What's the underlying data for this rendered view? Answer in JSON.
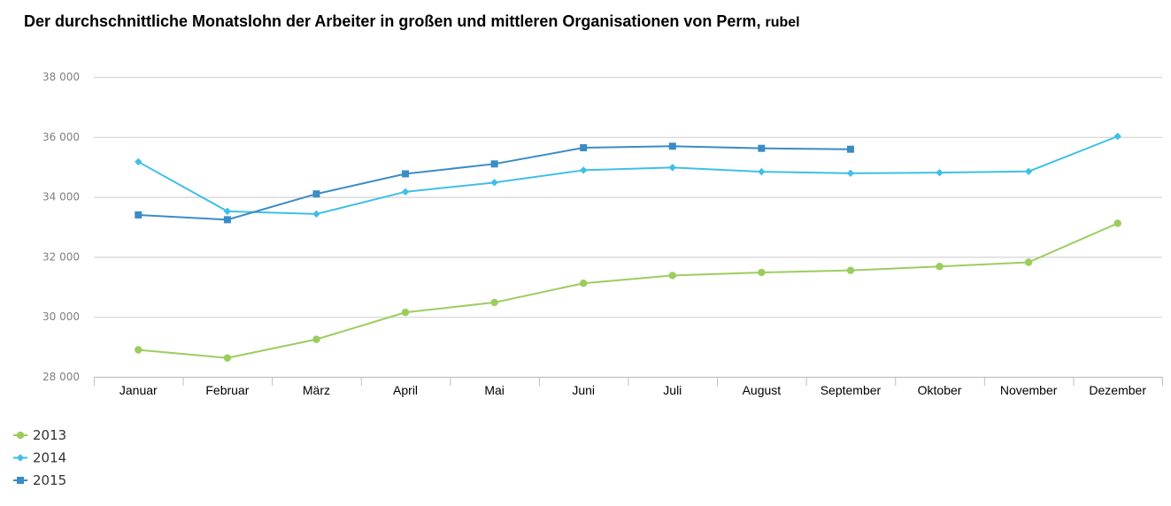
{
  "chart_data": {
    "type": "line",
    "title": "Der durchschnittliche Monatslohn der Arbeiter in großen und mittleren Organisationen von Perm,",
    "unit": "rubel",
    "categories": [
      "Januar",
      "Februar",
      "März",
      "April",
      "Mai",
      "Juni",
      "Juli",
      "August",
      "September",
      "Oktober",
      "November",
      "Dezember"
    ],
    "ylim": [
      28000,
      38000
    ],
    "yticks": [
      28000,
      30000,
      32000,
      34000,
      36000,
      38000
    ],
    "ytick_labels": [
      "28 000",
      "30 000",
      "32 000",
      "34 000",
      "36 000",
      "38 000"
    ],
    "grid": true,
    "legend_position": "bottom-left",
    "series": [
      {
        "name": "2013",
        "color": "#9bcd5e",
        "marker": "circle",
        "values": [
          28900,
          28630,
          29250,
          30150,
          30480,
          31120,
          31380,
          31480,
          31550,
          31680,
          31820,
          33120
        ]
      },
      {
        "name": "2014",
        "color": "#3fbfe8",
        "marker": "diamond",
        "values": [
          35170,
          33520,
          33430,
          34170,
          34480,
          34890,
          34980,
          34840,
          34790,
          34810,
          34850,
          36020
        ]
      },
      {
        "name": "2015",
        "color": "#3a8cc5",
        "marker": "square",
        "values": [
          33400,
          33240,
          34100,
          34770,
          35100,
          35640,
          35690,
          35620,
          35590,
          null,
          null,
          null
        ]
      }
    ]
  }
}
